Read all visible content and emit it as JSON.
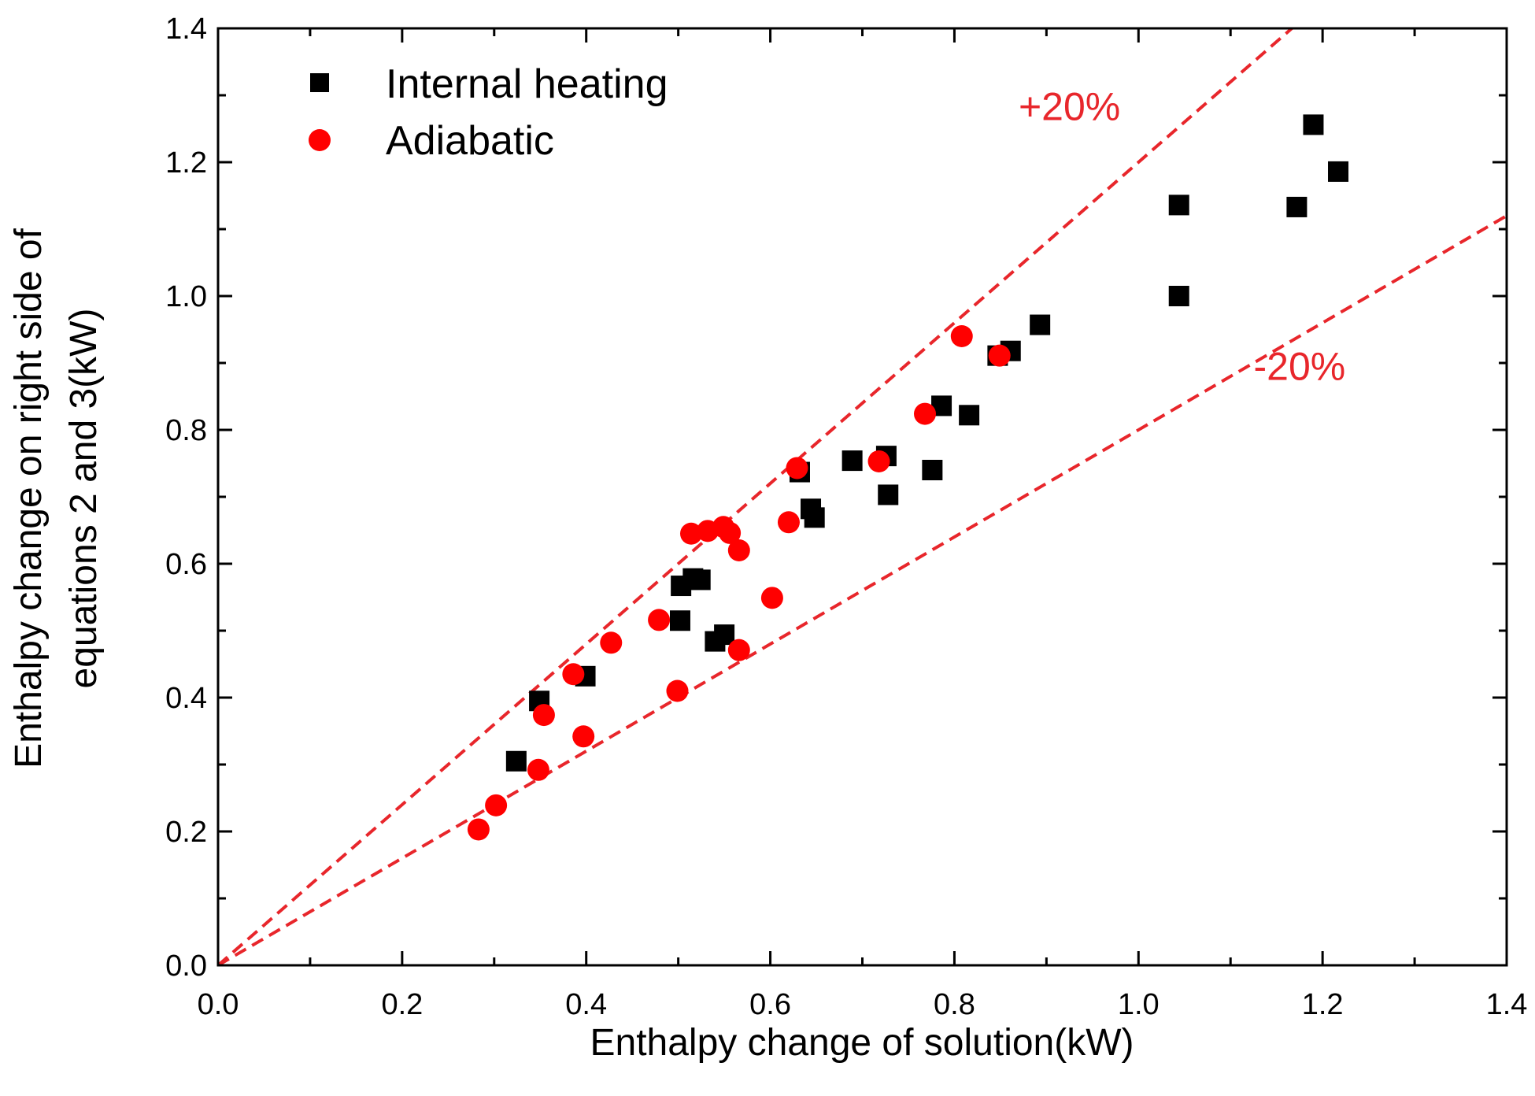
{
  "chart_data": {
    "type": "scatter",
    "title": "",
    "xlabel": "Enthalpy change of solution(kW)",
    "ylabel_lines": [
      "Enthalpy change on right side of",
      "equations 2 and 3(kW)"
    ],
    "xlim": [
      0.0,
      1.4
    ],
    "ylim": [
      0.0,
      1.4
    ],
    "x_ticks": [
      "0.0",
      "0.2",
      "0.4",
      "0.6",
      "0.8",
      "1.0",
      "1.2",
      "1.4"
    ],
    "y_ticks": [
      "0.0",
      "0.2",
      "0.4",
      "0.6",
      "0.8",
      "1.0",
      "1.2",
      "1.4"
    ],
    "grid": false,
    "legend_position": "top-left",
    "series": [
      {
        "name": "Internal heating",
        "marker": "square",
        "color": "#000000",
        "points": [
          [
            0.324,
            0.305
          ],
          [
            0.349,
            0.395
          ],
          [
            0.399,
            0.432
          ],
          [
            0.502,
            0.515
          ],
          [
            0.503,
            0.567
          ],
          [
            0.516,
            0.578
          ],
          [
            0.524,
            0.576
          ],
          [
            0.54,
            0.484
          ],
          [
            0.55,
            0.494
          ],
          [
            0.632,
            0.737
          ],
          [
            0.644,
            0.682
          ],
          [
            0.648,
            0.669
          ],
          [
            0.689,
            0.754
          ],
          [
            0.726,
            0.761
          ],
          [
            0.728,
            0.703
          ],
          [
            0.776,
            0.74
          ],
          [
            0.786,
            0.836
          ],
          [
            0.816,
            0.822
          ],
          [
            0.847,
            0.911
          ],
          [
            0.861,
            0.918
          ],
          [
            0.893,
            0.957
          ],
          [
            1.044,
            1.136
          ],
          [
            1.044,
            1.0
          ],
          [
            1.172,
            1.133
          ],
          [
            1.19,
            1.256
          ],
          [
            1.217,
            1.186
          ]
        ]
      },
      {
        "name": "Adiabatic",
        "marker": "circle",
        "color": "#ff0000",
        "points": [
          [
            0.283,
            0.203
          ],
          [
            0.302,
            0.239
          ],
          [
            0.348,
            0.292
          ],
          [
            0.354,
            0.374
          ],
          [
            0.386,
            0.435
          ],
          [
            0.397,
            0.342
          ],
          [
            0.427,
            0.482
          ],
          [
            0.479,
            0.516
          ],
          [
            0.499,
            0.41
          ],
          [
            0.514,
            0.645
          ],
          [
            0.532,
            0.649
          ],
          [
            0.549,
            0.655
          ],
          [
            0.556,
            0.646
          ],
          [
            0.566,
            0.62
          ],
          [
            0.566,
            0.471
          ],
          [
            0.602,
            0.549
          ],
          [
            0.62,
            0.662
          ],
          [
            0.629,
            0.743
          ],
          [
            0.718,
            0.753
          ],
          [
            0.768,
            0.824
          ],
          [
            0.808,
            0.94
          ],
          [
            0.849,
            0.911
          ]
        ]
      }
    ],
    "reference_lines": [
      {
        "name": "+20%",
        "slope": 1.2,
        "color": "#e8262b",
        "style": "dashed"
      },
      {
        "name": "-20%",
        "slope": 0.8,
        "color": "#e8262b",
        "style": "dashed"
      }
    ],
    "annotations": [
      {
        "text": "+20%",
        "x": 0.925,
        "y": 1.263,
        "color": "#e8262b"
      },
      {
        "text": "-20%",
        "x": 1.175,
        "y": 0.875,
        "color": "#e8262b"
      }
    ]
  }
}
